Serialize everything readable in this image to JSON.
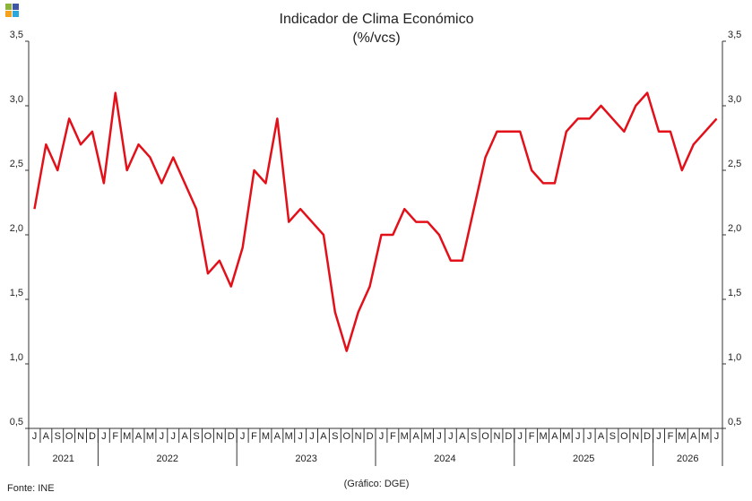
{
  "chart_data": {
    "type": "line",
    "title": "Indicador de Clima Económico",
    "subtitle": "(%/vcs)",
    "source": "Fonte: INE",
    "credit": "(Gráfico: DGE)",
    "category_groups": [
      {
        "label": "2021",
        "categories": [
          "J",
          "A",
          "S",
          "O",
          "N",
          "D"
        ]
      },
      {
        "label": "2022",
        "categories": [
          "J",
          "F",
          "M",
          "A",
          "M",
          "J",
          "J",
          "A",
          "S",
          "O",
          "N",
          "D"
        ]
      },
      {
        "label": "2023",
        "categories": [
          "J",
          "F",
          "M",
          "A",
          "M",
          "J",
          "J",
          "A",
          "S",
          "O",
          "N",
          "D"
        ]
      },
      {
        "label": "2024",
        "categories": [
          "J",
          "F",
          "M",
          "A",
          "M",
          "J",
          "J",
          "A",
          "S",
          "O",
          "N",
          "D"
        ]
      },
      {
        "label": "2025",
        "categories": [
          "J",
          "F",
          "M",
          "A",
          "M",
          "J",
          "J",
          "A",
          "S",
          "O",
          "N",
          "D"
        ]
      },
      {
        "label": "2026",
        "categories": [
          "J",
          "F",
          "M",
          "A",
          "M",
          "J"
        ]
      }
    ],
    "values": [
      2.2,
      2.7,
      2.5,
      2.9,
      2.7,
      2.8,
      2.4,
      3.1,
      2.5,
      2.7,
      2.6,
      2.4,
      2.6,
      2.4,
      2.2,
      1.7,
      1.8,
      1.6,
      1.9,
      2.5,
      2.4,
      2.9,
      2.1,
      2.2,
      2.1,
      2.0,
      1.4,
      1.1,
      1.4,
      1.6,
      2.0,
      2.0,
      2.2,
      2.1,
      2.1,
      2.0,
      1.8,
      1.8,
      2.2,
      2.6,
      2.8,
      2.8,
      2.8,
      2.5,
      2.4,
      2.4,
      2.8,
      2.9,
      2.9,
      3.0,
      2.9,
      2.8,
      3.0,
      3.1,
      2.8,
      2.8,
      2.5,
      2.7,
      2.8,
      2.9
    ],
    "color": "#e3101a",
    "ylim": [
      0.5,
      3.5
    ],
    "yticks": [
      {
        "value": 0.5,
        "label": "0,5"
      },
      {
        "value": 1.0,
        "label": "1,0"
      },
      {
        "value": 1.5,
        "label": "1,5"
      },
      {
        "value": 2.0,
        "label": "2,0"
      },
      {
        "value": 2.5,
        "label": "2,5"
      },
      {
        "value": 3.0,
        "label": "3,0"
      },
      {
        "value": 3.5,
        "label": "3,5"
      }
    ],
    "grid": false
  }
}
